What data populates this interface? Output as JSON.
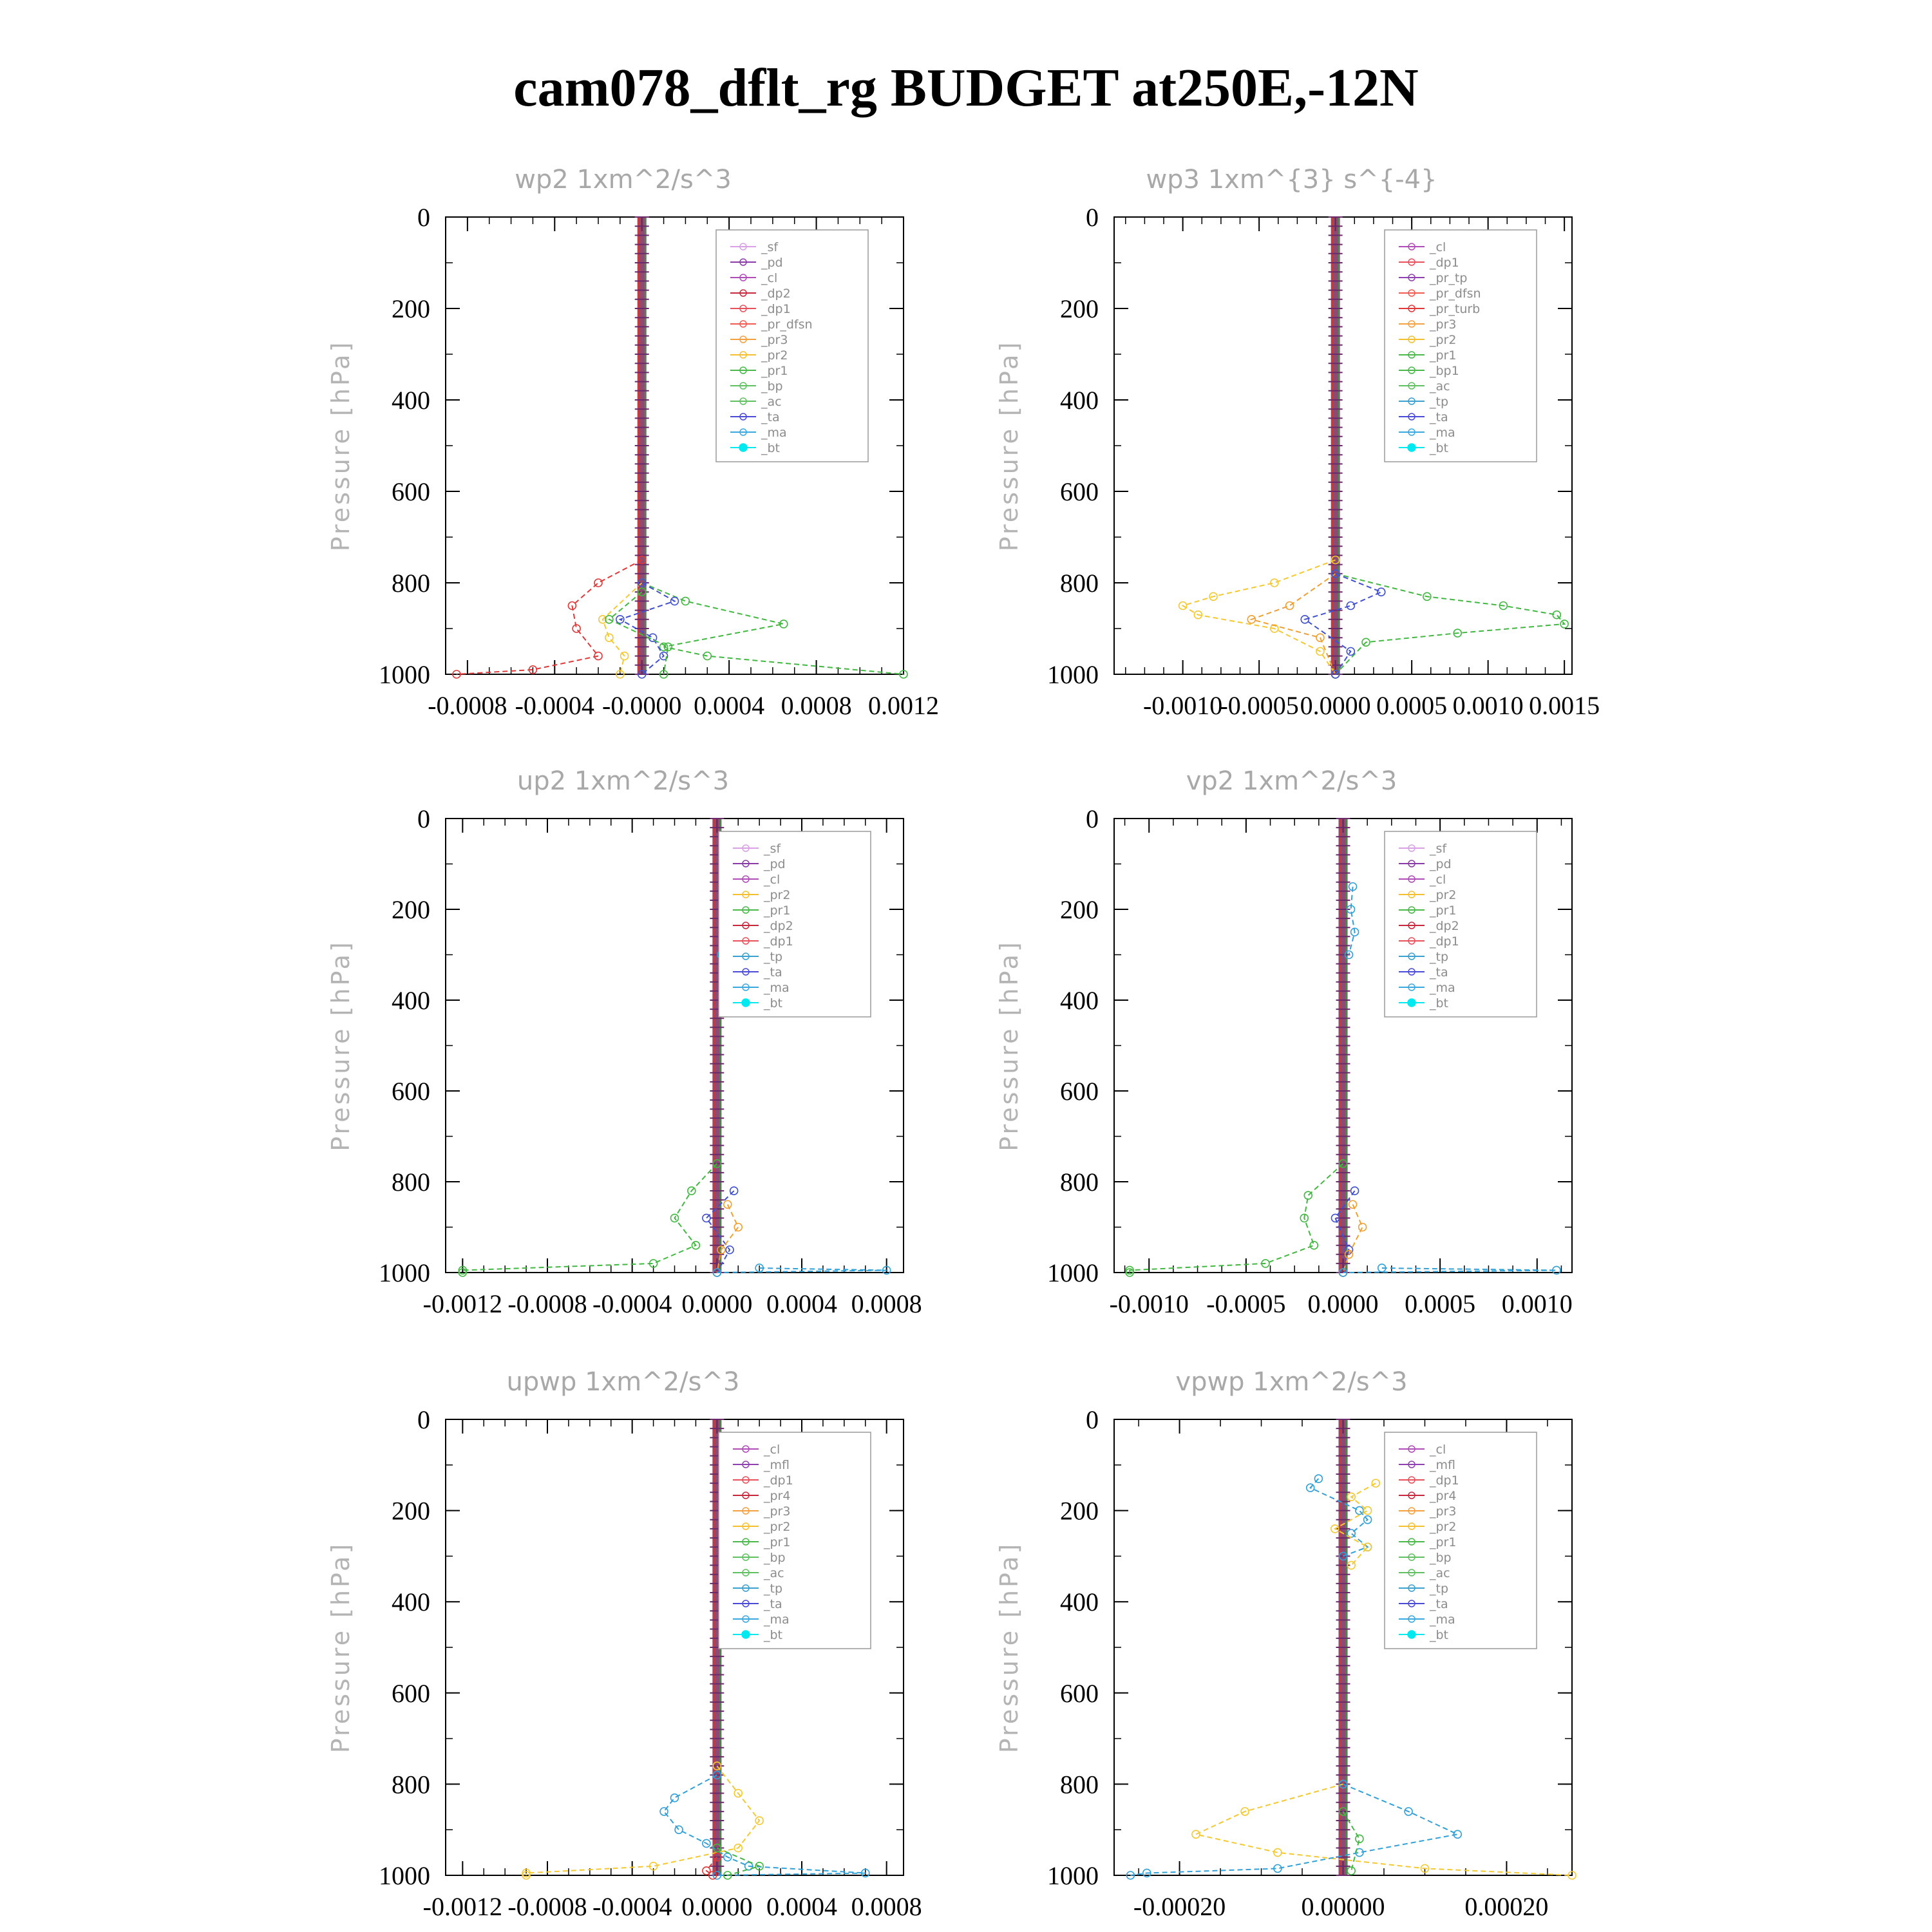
{
  "title": "cam078_dflt_rg  BUDGET at250E,-12N",
  "colors": {
    "sf": "#d9a0e6",
    "pd": "#8a3aa6",
    "cl": "#b04cb8",
    "dp2": "#c8283c",
    "dp1": "#e8505a",
    "pr_dfsn": "#f05a50",
    "pr3": "#f4a040",
    "pr2": "#f4c030",
    "pr1": "#48b848",
    "bp": "#60c060",
    "ac": "#3aa0d0",
    "ta": "#4a4ad8",
    "ma": "#3aa8e0",
    "bt": "#00e8f0",
    "red": "#e03838",
    "orange": "#f0a030",
    "yellow": "#f4c830",
    "green": "#40b840",
    "blue": "#4050d0",
    "cyan": "#30a0d8",
    "purple": "#9040b0",
    "darkred": "#a02040"
  },
  "chart_data": [
    {
      "type": "line",
      "title": "wp2   1xm^2/s^3",
      "ylabel": "Pressure [hPa]",
      "ylim": [
        1000,
        0
      ],
      "yticks": [
        "0",
        "200",
        "400",
        "600",
        "800",
        "1000"
      ],
      "xlim": [
        -0.0009,
        0.0012
      ],
      "xticks": [
        -0.0008,
        -0.0004,
        0.0,
        0.0004,
        0.0008,
        0.0012
      ],
      "xtick_labels": [
        "-0.0008",
        "-0.0004",
        "-0.0000",
        "0.0004",
        "0.0008",
        "0.0012"
      ],
      "legend": [
        "_sf",
        "_pd",
        "_cl",
        "_dp2",
        "_dp1",
        "_pr_dfsn",
        "_pr3",
        "_pr2",
        "_pr1",
        "_bp",
        "_ac",
        "_ta",
        "_ma",
        "_bt"
      ],
      "series": [
        {
          "name": "_dp1",
          "color": "red",
          "p": [
            750,
            800,
            850,
            900,
            960,
            990,
            1000
          ],
          "v": [
            0.0,
            -0.0002,
            -0.00032,
            -0.0003,
            -0.0002,
            -0.0005,
            -0.00085
          ]
        },
        {
          "name": "_pr2",
          "color": "yellow",
          "p": [
            800,
            880,
            920,
            960,
            1000
          ],
          "v": [
            0.0,
            -0.00018,
            -0.00015,
            -8e-05,
            -0.0001
          ]
        },
        {
          "name": "_bp",
          "color": "green",
          "p": [
            800,
            840,
            890,
            940,
            960,
            1000
          ],
          "v": [
            0.0,
            0.0002,
            0.00065,
            0.0001,
            0.0003,
            0.0012
          ]
        },
        {
          "name": "_ta",
          "color": "blue",
          "p": [
            800,
            840,
            880,
            920,
            960,
            1000
          ],
          "v": [
            0.0,
            0.00015,
            -0.0001,
            5e-05,
            0.0001,
            0.0
          ]
        },
        {
          "name": "_pr1",
          "color": "green",
          "p": [
            820,
            880,
            940,
            1000
          ],
          "v": [
            0.0,
            -0.00015,
            0.00012,
            0.0001
          ]
        }
      ]
    },
    {
      "type": "line",
      "title": "wp3   1xm^{3} s^{-4}",
      "ylabel": "Pressure [hPa]",
      "ylim": [
        1000,
        0
      ],
      "yticks": [
        "0",
        "200",
        "400",
        "600",
        "800",
        "1000"
      ],
      "xlim": [
        -0.00145,
        0.00155
      ],
      "xticks": [
        -0.001,
        -0.0005,
        0.0,
        0.0005,
        0.001,
        0.0015
      ],
      "xtick_labels": [
        "-0.0010",
        "-0.0005",
        "0.0000",
        "0.0005",
        "0.0010",
        "0.0015"
      ],
      "legend": [
        "_cl",
        "_dp1",
        "_pr_tp",
        "_pr_dfsn",
        "_pr_turb",
        "_pr3",
        "_pr2",
        "_pr1",
        "_bp1",
        "_ac",
        "_tp",
        "_ta",
        "_ma",
        "_bt"
      ],
      "series": [
        {
          "name": "_pr2",
          "color": "yellow",
          "p": [
            750,
            800,
            830,
            850,
            870,
            900,
            950,
            1000
          ],
          "v": [
            0.0,
            -0.0004,
            -0.0008,
            -0.001,
            -0.0009,
            -0.0004,
            -0.0001,
            0.0
          ]
        },
        {
          "name": "_pr3",
          "color": "orange",
          "p": [
            780,
            850,
            880,
            920,
            1000
          ],
          "v": [
            0.0,
            -0.0003,
            -0.00055,
            -0.0001,
            0.0
          ]
        },
        {
          "name": "_bp1",
          "color": "green",
          "p": [
            780,
            830,
            850,
            870,
            890,
            910,
            930,
            1000
          ],
          "v": [
            0.0,
            0.0006,
            0.0011,
            0.00145,
            0.0015,
            0.0008,
            0.0002,
            0.0
          ]
        },
        {
          "name": "_ta",
          "color": "blue",
          "p": [
            780,
            820,
            850,
            880,
            950,
            1000
          ],
          "v": [
            0.0,
            0.0003,
            0.0001,
            -0.0002,
            0.0001,
            0.0
          ]
        }
      ]
    },
    {
      "type": "line",
      "title": "up2   1xm^2/s^3",
      "ylabel": "Pressure [hPa]",
      "ylim": [
        1000,
        0
      ],
      "yticks": [
        "0",
        "200",
        "400",
        "600",
        "800",
        "1000"
      ],
      "xlim": [
        -0.00128,
        0.00088
      ],
      "xticks": [
        -0.0012,
        -0.0008,
        -0.0004,
        0.0,
        0.0004,
        0.0008
      ],
      "xtick_labels": [
        "-0.0012",
        "-0.0008",
        "-0.0004",
        "0.0000",
        "0.0004",
        "0.0008"
      ],
      "legend": [
        "_sf",
        "_pd",
        "_cl",
        "_pr2",
        "_pr1",
        "_dp2",
        "_dp1",
        "_tp",
        "_ta",
        "_ma",
        "_bt"
      ],
      "series": [
        {
          "name": "_dp1",
          "color": "green",
          "p": [
            760,
            820,
            880,
            940,
            980,
            995,
            1000
          ],
          "v": [
            0.0,
            -0.00012,
            -0.0002,
            -0.0001,
            -0.0003,
            -0.0012,
            -0.0012
          ]
        },
        {
          "name": "_tp",
          "color": "cyan",
          "p": [
            150,
            200,
            250,
            300
          ],
          "v": [
            5e-05,
            3e-05,
            6e-05,
            2e-05
          ]
        },
        {
          "name": "_ta",
          "color": "blue",
          "p": [
            820,
            880,
            950,
            1000
          ],
          "v": [
            8e-05,
            -5e-05,
            6e-05,
            0.0
          ]
        },
        {
          "name": "_pr2",
          "color": "orange",
          "p": [
            850,
            900,
            950,
            1000
          ],
          "v": [
            5e-05,
            0.0001,
            2e-05,
            0.0
          ]
        },
        {
          "name": "_ma",
          "color": "cyan",
          "p": [
            990,
            995,
            1000
          ],
          "v": [
            0.0002,
            0.0008,
            0.0
          ]
        }
      ]
    },
    {
      "type": "line",
      "title": "vp2   1xm^2/s^3",
      "ylabel": "Pressure [hPa]",
      "ylim": [
        1000,
        0
      ],
      "yticks": [
        "0",
        "200",
        "400",
        "600",
        "800",
        "1000"
      ],
      "xlim": [
        -0.00118,
        0.00118
      ],
      "xticks": [
        -0.001,
        -0.0005,
        0.0,
        0.0005,
        0.001
      ],
      "xtick_labels": [
        "-0.0010",
        "-0.0005",
        "0.0000",
        "0.0005",
        "0.0010"
      ],
      "legend": [
        "_sf",
        "_pd",
        "_cl",
        "_pr2",
        "_pr1",
        "_dp2",
        "_dp1",
        "_tp",
        "_ta",
        "_ma",
        "_bt"
      ],
      "series": [
        {
          "name": "_dp1",
          "color": "green",
          "p": [
            760,
            830,
            880,
            940,
            980,
            995,
            1000
          ],
          "v": [
            0.0,
            -0.00018,
            -0.0002,
            -0.00015,
            -0.0004,
            -0.0011,
            -0.0011
          ]
        },
        {
          "name": "_tp",
          "color": "cyan",
          "p": [
            150,
            200,
            250,
            300
          ],
          "v": [
            5e-05,
            4e-05,
            6e-05,
            3e-05
          ]
        },
        {
          "name": "_ta",
          "color": "blue",
          "p": [
            820,
            880,
            950,
            1000
          ],
          "v": [
            6e-05,
            -4e-05,
            3e-05,
            0.0
          ]
        },
        {
          "name": "_pr2",
          "color": "orange",
          "p": [
            850,
            900,
            960,
            1000
          ],
          "v": [
            5e-05,
            0.0001,
            3e-05,
            0.0
          ]
        },
        {
          "name": "_ma",
          "color": "cyan",
          "p": [
            990,
            995,
            1000
          ],
          "v": [
            0.0002,
            0.0011,
            0.0
          ]
        }
      ]
    },
    {
      "type": "line",
      "title": "upwp   1xm^2/s^3",
      "ylabel": "Pressure [hPa]",
      "ylim": [
        1000,
        0
      ],
      "yticks": [
        "0",
        "200",
        "400",
        "600",
        "800",
        "1000"
      ],
      "xlim": [
        -0.00128,
        0.00088
      ],
      "xticks": [
        -0.0012,
        -0.0008,
        -0.0004,
        0.0,
        0.0004,
        0.0008
      ],
      "xtick_labels": [
        "-0.0012",
        "-0.0008",
        "-0.0004",
        "0.0000",
        "0.0004",
        "0.0008"
      ],
      "legend": [
        "_cl",
        "_mfl",
        "_dp1",
        "_pr4",
        "_pr3",
        "_pr2",
        "_pr1",
        "_bp",
        "_ac",
        "_tp",
        "_ta",
        "_ma",
        "_bt"
      ],
      "series": [
        {
          "name": "_tp",
          "color": "cyan",
          "p": [
            780,
            830,
            860,
            900,
            930,
            960,
            980,
            995,
            1000
          ],
          "v": [
            0.0,
            -0.0002,
            -0.00025,
            -0.00018,
            -5e-05,
            5e-05,
            0.00015,
            0.0007,
            0.0
          ]
        },
        {
          "name": "_pr1",
          "color": "yellow",
          "p": [
            760,
            820,
            880,
            940,
            980,
            995,
            1000
          ],
          "v": [
            0.0,
            0.0001,
            0.0002,
            0.0001,
            -0.0003,
            -0.0009,
            -0.0009
          ]
        },
        {
          "name": "_bp",
          "color": "green",
          "p": [
            940,
            980,
            1000
          ],
          "v": [
            0.0,
            0.0002,
            5e-05
          ]
        },
        {
          "name": "_dp1",
          "color": "red",
          "p": [
            960,
            990,
            1000
          ],
          "v": [
            0.0,
            -5e-05,
            -2e-05
          ]
        }
      ]
    },
    {
      "type": "line",
      "title": "vpwp   1xm^2/s^3",
      "ylabel": "Pressure [hPa]",
      "ylim": [
        1000,
        0
      ],
      "yticks": [
        "0",
        "200",
        "400",
        "600",
        "800",
        "1000"
      ],
      "xlim": [
        -0.00028,
        0.00028
      ],
      "xticks": [
        -0.0002,
        0.0,
        0.0002
      ],
      "xtick_labels": [
        "-0.00020",
        "0.00000",
        "0.00020"
      ],
      "legend": [
        "_cl",
        "_mfl",
        "_dp1",
        "_pr4",
        "_pr3",
        "_pr2",
        "_pr1",
        "_bp",
        "_ac",
        "_tp",
        "_ta",
        "_ma",
        "_bt"
      ],
      "series": [
        {
          "name": "_tp",
          "color": "cyan",
          "p": [
            130,
            150,
            200,
            220,
            250,
            280,
            300
          ],
          "v": [
            -3e-05,
            -4e-05,
            2e-05,
            3e-05,
            1e-05,
            3e-05,
            0.0
          ]
        },
        {
          "name": "_pr1",
          "color": "yellow",
          "p": [
            140,
            170,
            200,
            240,
            280,
            320
          ],
          "v": [
            4e-05,
            1e-05,
            3e-05,
            -1e-05,
            3e-05,
            1e-05
          ]
        },
        {
          "name": "_pr2",
          "color": "yellow",
          "p": [
            800,
            860,
            910,
            950,
            985,
            1000
          ],
          "v": [
            0.0,
            -0.00012,
            -0.00018,
            -8e-05,
            0.0001,
            0.00028
          ]
        },
        {
          "name": "_ma",
          "color": "cyan",
          "p": [
            800,
            860,
            910,
            950,
            985,
            995,
            1000
          ],
          "v": [
            0.0,
            8e-05,
            0.00014,
            2e-05,
            -8e-05,
            -0.00024,
            -0.00026
          ]
        },
        {
          "name": "_bp",
          "color": "green",
          "p": [
            860,
            920,
            990
          ],
          "v": [
            0.0,
            2e-05,
            1e-05
          ]
        }
      ]
    }
  ]
}
